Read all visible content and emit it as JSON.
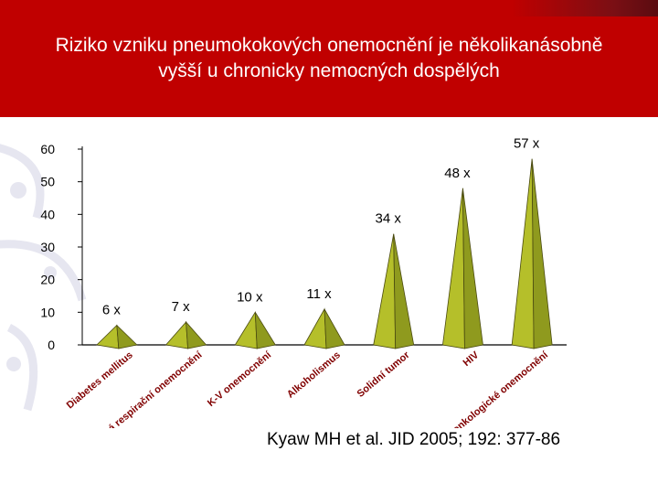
{
  "slide": {
    "title_line1": "Riziko vzniku pneumokokových onemocnění je několikanásobně",
    "title_line2": "vyšší u chronicky nemocných dospělých",
    "citation": "Kyaw MH et al. JID 2005; 192: 377-86"
  },
  "colors": {
    "header": "#c00000",
    "cone_face": "#b5bf2a",
    "cone_shade": "#8f9a1e",
    "category_text": "#800000",
    "watermark": "#e8e8f2"
  },
  "chart_data": {
    "type": "bar",
    "mark_shape": "cone",
    "categories": [
      "Diabetes mellitus",
      "Chronická respirační onemocnění",
      "K-V onemocnění",
      "Alkoholismus",
      "Solidní tumor",
      "HIV",
      "Hematoonkologické onemocnění"
    ],
    "values": [
      6,
      7,
      10,
      11,
      34,
      48,
      57
    ],
    "data_labels": [
      "6 x",
      "7 x",
      "10 x",
      "11 x",
      "34 x",
      "48 x",
      "57 x"
    ],
    "yticks": [
      0,
      10,
      20,
      30,
      40,
      50,
      60
    ],
    "ylim": [
      0,
      60
    ],
    "grid": false,
    "legend": "none"
  }
}
